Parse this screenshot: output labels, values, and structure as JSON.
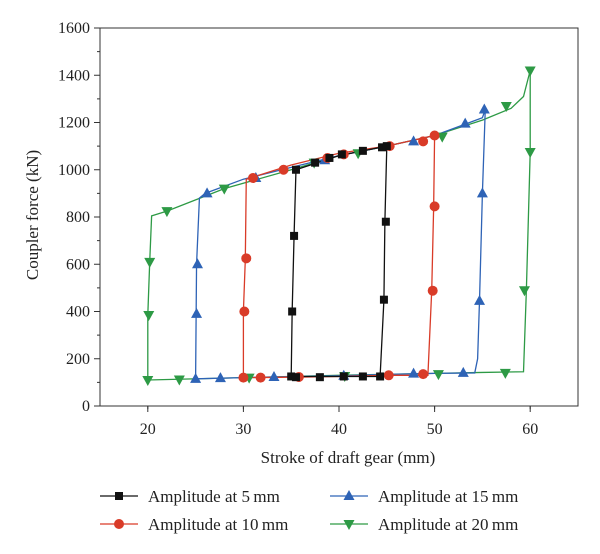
{
  "chart_data": {
    "type": "line",
    "title": "",
    "xlabel": "Stroke of draft gear (mm)",
    "ylabel": "Coupler force (kN)",
    "xlim": [
      15,
      65
    ],
    "ylim": [
      0,
      1600
    ],
    "x_ticks": [
      20,
      30,
      40,
      50,
      60
    ],
    "y_ticks": [
      0,
      200,
      400,
      600,
      800,
      1000,
      1200,
      1400,
      1600
    ],
    "grid": false,
    "legend_position": "bottom",
    "series": [
      {
        "name": "Amplitude at 5 mm",
        "color": "#111111",
        "marker": "square",
        "line": [
          [
            35,
            125
          ],
          [
            35.1,
            400
          ],
          [
            35.3,
            720
          ],
          [
            35.5,
            1000
          ],
          [
            40,
            1060
          ],
          [
            45,
            1100
          ],
          [
            44.8,
            780
          ],
          [
            44.7,
            450
          ],
          [
            44.3,
            125
          ],
          [
            40,
            125
          ],
          [
            35,
            125
          ]
        ],
        "points": [
          [
            35,
            125
          ],
          [
            35.1,
            400
          ],
          [
            35.3,
            720
          ],
          [
            35.5,
            1000
          ],
          [
            37.5,
            1030
          ],
          [
            39,
            1050
          ],
          [
            40.3,
            1065
          ],
          [
            42.5,
            1080
          ],
          [
            44.5,
            1095
          ],
          [
            45,
            1100
          ],
          [
            44.9,
            780
          ],
          [
            44.7,
            450
          ],
          [
            44.3,
            125
          ],
          [
            42.5,
            125
          ],
          [
            40.5,
            125
          ],
          [
            38,
            122
          ],
          [
            35.5,
            122
          ]
        ]
      },
      {
        "name": "Amplitude at 10 mm",
        "color": "#d93b28",
        "marker": "circle",
        "line": [
          [
            30,
            120
          ],
          [
            30,
            400
          ],
          [
            30.2,
            620
          ],
          [
            30.3,
            960
          ],
          [
            35,
            1020
          ],
          [
            40,
            1070
          ],
          [
            45,
            1100
          ],
          [
            50,
            1145
          ],
          [
            49.9,
            840
          ],
          [
            49.7,
            490
          ],
          [
            49.3,
            130
          ],
          [
            45,
            130
          ],
          [
            40,
            125
          ],
          [
            35,
            122
          ],
          [
            30,
            120
          ]
        ],
        "points": [
          [
            30,
            120
          ],
          [
            30.1,
            400
          ],
          [
            30.3,
            625
          ],
          [
            31,
            965
          ],
          [
            34.2,
            1000
          ],
          [
            38.8,
            1050
          ],
          [
            40.5,
            1065
          ],
          [
            45.3,
            1100
          ],
          [
            48.8,
            1120
          ],
          [
            50,
            1145
          ],
          [
            50,
            845
          ],
          [
            49.8,
            488
          ],
          [
            48.8,
            135
          ],
          [
            45.2,
            130
          ],
          [
            35.8,
            123
          ],
          [
            31.8,
            120
          ]
        ]
      },
      {
        "name": "Amplitude at 15 mm",
        "color": "#2e63b6",
        "marker": "triangle-up",
        "line": [
          [
            25,
            115
          ],
          [
            25.1,
            600
          ],
          [
            25.4,
            880
          ],
          [
            26,
            900
          ],
          [
            30,
            960
          ],
          [
            35,
            1010
          ],
          [
            40,
            1060
          ],
          [
            45,
            1100
          ],
          [
            50,
            1145
          ],
          [
            55,
            1220
          ],
          [
            55.3,
            1255
          ],
          [
            55,
            900
          ],
          [
            54.7,
            450
          ],
          [
            54.5,
            200
          ],
          [
            54.2,
            140
          ],
          [
            50,
            138
          ],
          [
            45,
            134
          ],
          [
            40,
            128
          ],
          [
            35,
            124
          ],
          [
            30,
            120
          ],
          [
            25,
            115
          ]
        ],
        "points": [
          [
            25,
            115
          ],
          [
            25.1,
            390
          ],
          [
            25.2,
            600
          ],
          [
            26.2,
            900
          ],
          [
            31.3,
            965
          ],
          [
            38.5,
            1040
          ],
          [
            47.8,
            1120
          ],
          [
            53.2,
            1195
          ],
          [
            55.2,
            1255
          ],
          [
            55,
            900
          ],
          [
            54.7,
            445
          ],
          [
            53,
            140
          ],
          [
            47.8,
            137
          ],
          [
            40.5,
            128
          ],
          [
            33.2,
            123
          ],
          [
            27.6,
            118
          ]
        ]
      },
      {
        "name": "Amplitude at 20 mm",
        "color": "#2d9a45",
        "marker": "triangle-down",
        "line": [
          [
            20,
            110
          ],
          [
            20,
            385
          ],
          [
            20.2,
            610
          ],
          [
            20.4,
            805
          ],
          [
            22,
            825
          ],
          [
            28,
            920
          ],
          [
            35,
            1000
          ],
          [
            40,
            1060
          ],
          [
            45,
            1100
          ],
          [
            50,
            1145
          ],
          [
            55,
            1210
          ],
          [
            58,
            1260
          ],
          [
            59.3,
            1310
          ],
          [
            60,
            1420
          ],
          [
            60,
            1075
          ],
          [
            59.6,
            490
          ],
          [
            59.3,
            145
          ],
          [
            55,
            142
          ],
          [
            50,
            138
          ],
          [
            40,
            130
          ],
          [
            30,
            120
          ],
          [
            20,
            110
          ]
        ],
        "points": [
          [
            20,
            110
          ],
          [
            20.1,
            385
          ],
          [
            20.2,
            610
          ],
          [
            22,
            825
          ],
          [
            28,
            920
          ],
          [
            37.4,
            1030
          ],
          [
            42,
            1070
          ],
          [
            50.8,
            1140
          ],
          [
            57.5,
            1270
          ],
          [
            60,
            1420
          ],
          [
            60,
            1075
          ],
          [
            59.4,
            490
          ],
          [
            57.4,
            140
          ],
          [
            50.4,
            135
          ],
          [
            40.6,
            127
          ],
          [
            30.6,
            120
          ],
          [
            23.3,
            112
          ]
        ]
      }
    ]
  },
  "legend": {
    "items": [
      {
        "label": "Amplitude at 5 mm",
        "marker": "square",
        "color": "#111111"
      },
      {
        "label": "Amplitude at 15 mm",
        "marker": "triangle-up",
        "color": "#2e63b6"
      },
      {
        "label": "Amplitude at 10 mm",
        "marker": "circle",
        "color": "#d93b28"
      },
      {
        "label": "Amplitude at 20 mm",
        "marker": "triangle-down",
        "color": "#2d9a45"
      }
    ]
  }
}
